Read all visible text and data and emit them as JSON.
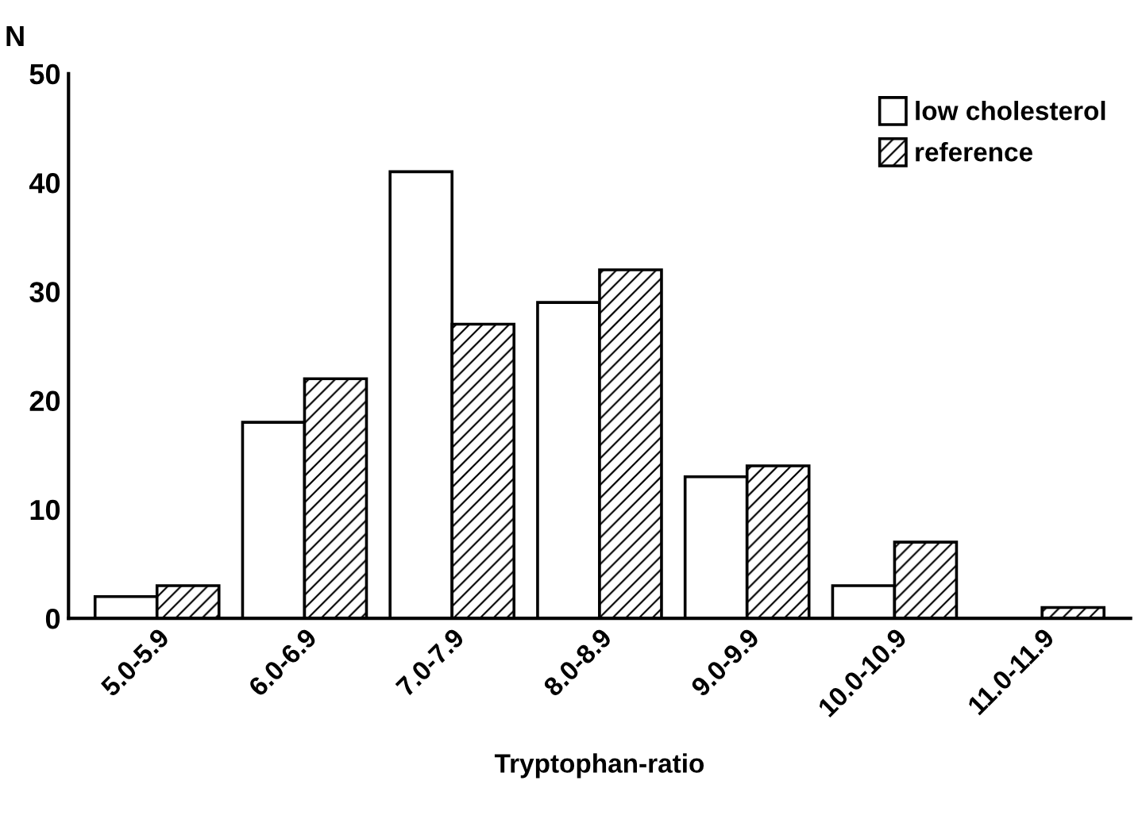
{
  "chart_data": {
    "type": "bar",
    "xlabel": "Tryptophan-ratio",
    "ylabel": "N",
    "categories": [
      "5.0-5.9",
      "6.0-6.9",
      "7.0-7.9",
      "8.0-8.9",
      "9.0-9.9",
      "10.0-10.9",
      "11.0-11.9"
    ],
    "series": [
      {
        "name": "low cholesterol",
        "color": "#ffffff",
        "values": [
          2,
          18,
          41,
          29,
          13,
          3,
          null
        ]
      },
      {
        "name": "reference",
        "color": "#000000",
        "values": [
          3,
          22,
          27,
          32,
          14,
          7,
          1
        ]
      }
    ],
    "ylim": [
      0,
      50
    ],
    "yticks": [
      0,
      10,
      20,
      30,
      40,
      50
    ],
    "grid": false,
    "legend": "top right"
  }
}
